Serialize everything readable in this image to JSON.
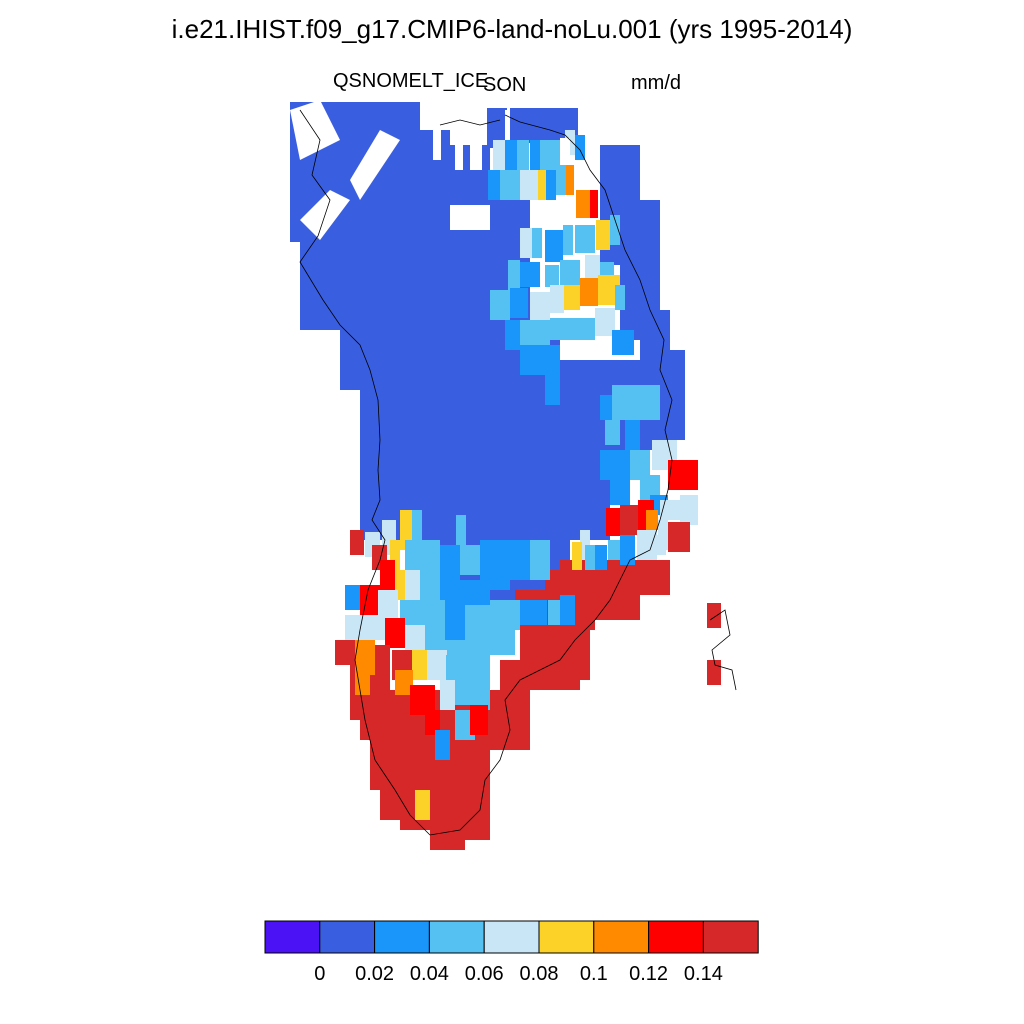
{
  "title": "i.e21.IHIST.f09_g17.CMIP6-land-noLu.001 (yrs 1995-2014)",
  "variable": "QSNOMELT_ICE",
  "season": "SON",
  "units": "mm/d",
  "colorbar": {
    "colors": [
      "#4a12f5",
      "#3a5ee0",
      "#1a96fa",
      "#55c0f2",
      "#c8e6f6",
      "#fdd228",
      "#ff8a00",
      "#ff0000",
      "#d62828"
    ],
    "tick_labels": [
      "0",
      "0.02",
      "0.04",
      "0.06",
      "0.08",
      "0.1",
      "0.12",
      "0.14"
    ]
  },
  "chart_data": {
    "type": "heatmap",
    "title": "i.e21.IHIST.f09_g17.CMIP6-land-noLu.001 (yrs 1995-2014)",
    "variable": "QSNOMELT_ICE",
    "season": "SON",
    "units": "mm/d",
    "levels": [
      0,
      0.02,
      0.04,
      0.06,
      0.08,
      0.1,
      0.12,
      0.14
    ],
    "region": "Greenland",
    "summary": {
      "interior_ice_sheet": "0-0.02",
      "northeast_margin": "0.02-0.14",
      "east_coast": "0.04-0.14",
      "southwest_margin": "0.04-0.14",
      "southern_tip": ">0.14"
    }
  }
}
